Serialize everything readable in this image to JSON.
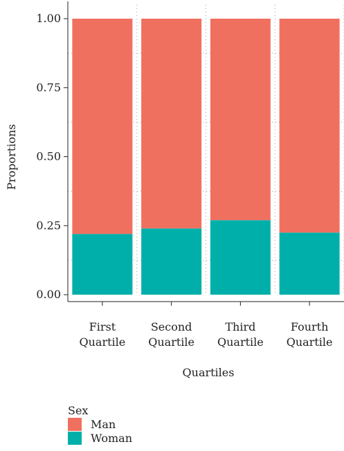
{
  "chart_data": {
    "type": "bar",
    "stacked": true,
    "categories": [
      [
        "First",
        "Quartile"
      ],
      [
        "Second",
        "Quartile"
      ],
      [
        "Third",
        "Quartile"
      ],
      [
        "Fourth",
        "Quartile"
      ]
    ],
    "series": [
      {
        "name": "Woman",
        "color": "#00AFAA",
        "values": [
          0.22,
          0.24,
          0.27,
          0.225
        ]
      },
      {
        "name": "Man",
        "color": "#F07060",
        "values": [
          0.78,
          0.76,
          0.73,
          0.775
        ]
      }
    ],
    "xlabel": "Quartiles",
    "ylabel": "Proportions",
    "ylim": [
      0,
      1
    ],
    "yticks": [
      "0.00",
      "0.25",
      "0.50",
      "0.75",
      "1.00"
    ],
    "grid": "minor dotted",
    "legend": {
      "title": "Sex",
      "placement": "bottom-left",
      "items": [
        {
          "label": "Man",
          "color": "#F07060"
        },
        {
          "label": "Woman",
          "color": "#00AFAA"
        }
      ]
    }
  }
}
